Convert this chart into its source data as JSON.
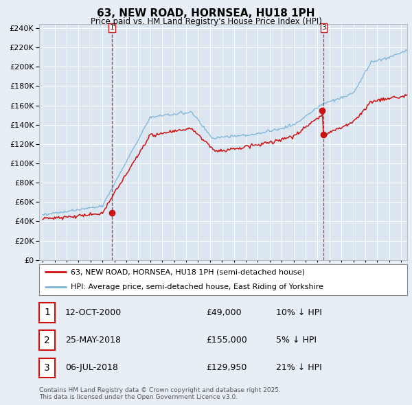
{
  "title": "63, NEW ROAD, HORNSEA, HU18 1PH",
  "subtitle": "Price paid vs. HM Land Registry's House Price Index (HPI)",
  "background_color": "#e8eef5",
  "plot_bg_color": "#dce6f0",
  "red_line_color": "#cc1111",
  "blue_line_color": "#7ab4d8",
  "grid_color": "#ffffff",
  "ylim": [
    0,
    244000
  ],
  "yticks": [
    0,
    20000,
    40000,
    60000,
    80000,
    100000,
    120000,
    140000,
    160000,
    180000,
    200000,
    220000,
    240000
  ],
  "xlim_start": 1994.7,
  "xlim_end": 2025.5,
  "xtick_years": [
    1995,
    1996,
    1997,
    1998,
    1999,
    2000,
    2001,
    2002,
    2003,
    2004,
    2005,
    2006,
    2007,
    2008,
    2009,
    2010,
    2011,
    2012,
    2013,
    2014,
    2015,
    2016,
    2017,
    2018,
    2019,
    2020,
    2021,
    2022,
    2023,
    2024,
    2025
  ],
  "sale1_t": 2000.79,
  "sale1_y": 49000,
  "sale2_t": 2018.4,
  "sale2_y": 155000,
  "sale3_t": 2018.52,
  "sale3_y": 129950,
  "legend_line1": "63, NEW ROAD, HORNSEA, HU18 1PH (semi-detached house)",
  "legend_line2": "HPI: Average price, semi-detached house, East Riding of Yorkshire",
  "table_rows": [
    {
      "num": "1",
      "date": "12-OCT-2000",
      "price": "£49,000",
      "change": "10% ↓ HPI"
    },
    {
      "num": "2",
      "date": "25-MAY-2018",
      "price": "£155,000",
      "change": "5% ↓ HPI"
    },
    {
      "num": "3",
      "date": "06-JUL-2018",
      "price": "£129,950",
      "change": "21% ↓ HPI"
    }
  ],
  "footnote": "Contains HM Land Registry data © Crown copyright and database right 2025.\nThis data is licensed under the Open Government Licence v3.0."
}
